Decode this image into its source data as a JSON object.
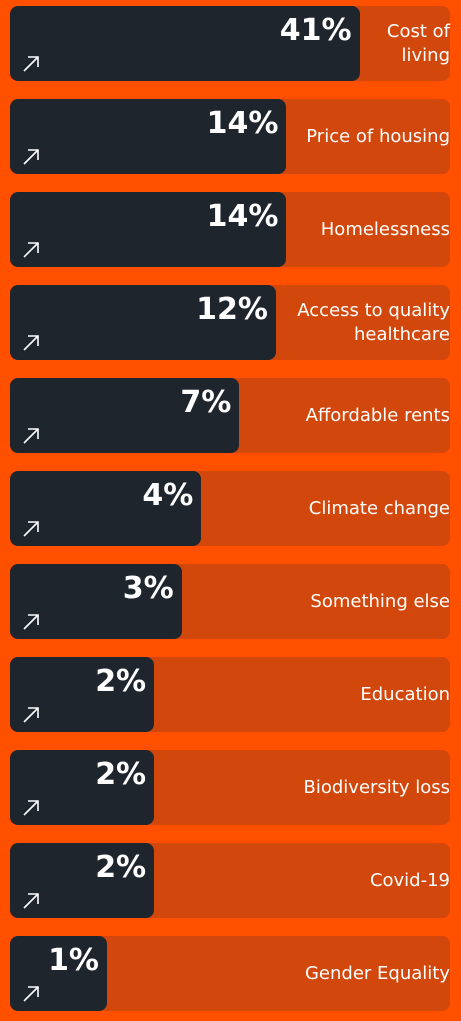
{
  "chart_data": {
    "type": "bar",
    "categories": [
      "Cost of living",
      "Price of housing",
      "Homelessness",
      "Access to quality healthcare",
      "Affordable rents",
      "Climate change",
      "Something else",
      "Education",
      "Biodiversity loss",
      "Covid-19",
      "Gender Equality"
    ],
    "values": [
      41,
      14,
      14,
      12,
      7,
      4,
      3,
      2,
      2,
      2,
      1
    ],
    "value_labels": [
      "41%",
      "14%",
      "14%",
      "12%",
      "7%",
      "4%",
      "3%",
      "2%",
      "2%",
      "2%",
      "1%"
    ],
    "color": "#1f252d"
  }
}
